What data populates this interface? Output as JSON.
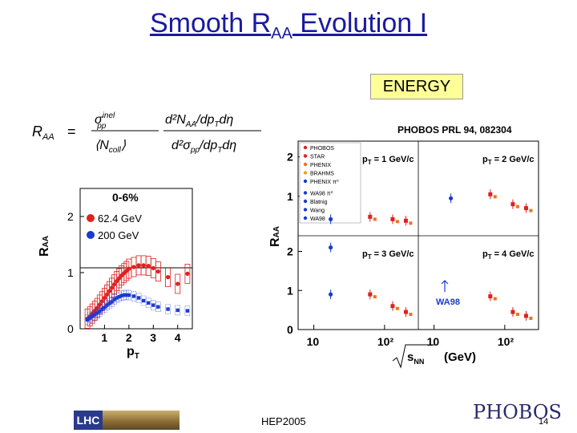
{
  "slide": {
    "title_main": "Smooth R",
    "title_sub": "AA",
    "title_rest": " Evolution I",
    "energy_label": "ENERGY",
    "reference": "PHOBOS PRL 94, 082304",
    "footer_center": "HEP2005",
    "page_number": "14",
    "logo_left_text": "LHC",
    "logo_right_text": "PHOBOS"
  },
  "formula": {
    "lhs": "R",
    "lhs_sub": "AA",
    "eq": "=",
    "frac1_num": "σ",
    "frac1_num_sup": "inel",
    "frac1_num_sub": "pp",
    "frac1_den": "⟨N",
    "frac1_den_sub": "coll",
    "frac1_den_end": "⟩",
    "frac2_num": "d²N",
    "frac2_num_sub": "AA",
    "frac2_num_end": "/dp",
    "frac2_num_sub2": "T",
    "frac2_num_tail": "dη",
    "frac2_den": "d²σ",
    "frac2_den_sub": "pp",
    "frac2_den_end": "/dp",
    "frac2_den_sub2": "T",
    "frac2_den_tail": "dη"
  },
  "colors": {
    "title": "#1a1aa0",
    "red": "#e02020",
    "blue": "#1a3ad0",
    "orange": "#f07020",
    "highlight": "#ffff99"
  },
  "chart_data": [
    {
      "type": "scatter",
      "title": "0-6%",
      "ylabel": "R",
      "ylabel_sub": "AA",
      "xlabel": "p",
      "xlabel_sub": "T",
      "xlim": [
        0,
        4.6
      ],
      "ylim": [
        0,
        2.5
      ],
      "x_ticks": [
        "1",
        "2",
        "3",
        "4"
      ],
      "y_ticks": [
        "0",
        "1",
        "2"
      ],
      "legend": [
        "62.4 GeV",
        "200 GeV"
      ],
      "series": [
        {
          "name": "62.4 GeV",
          "color": "#e02020",
          "x": [
            0.3,
            0.4,
            0.5,
            0.6,
            0.7,
            0.8,
            0.9,
            1.0,
            1.1,
            1.2,
            1.3,
            1.4,
            1.5,
            1.6,
            1.7,
            1.8,
            1.9,
            2.0,
            2.2,
            2.4,
            2.6,
            2.8,
            3.0,
            3.2,
            3.6,
            4.0,
            4.4
          ],
          "y": [
            0.18,
            0.22,
            0.27,
            0.32,
            0.37,
            0.43,
            0.49,
            0.55,
            0.61,
            0.67,
            0.73,
            0.79,
            0.85,
            0.9,
            0.95,
            0.99,
            1.03,
            1.07,
            1.1,
            1.13,
            1.13,
            1.12,
            1.08,
            1.02,
            0.92,
            0.8,
            0.98
          ]
        },
        {
          "name": "200 GeV",
          "color": "#1a3ad0",
          "x": [
            0.3,
            0.4,
            0.5,
            0.6,
            0.7,
            0.8,
            0.9,
            1.0,
            1.1,
            1.2,
            1.3,
            1.4,
            1.5,
            1.6,
            1.7,
            1.8,
            1.9,
            2.0,
            2.2,
            2.4,
            2.6,
            2.8,
            3.0,
            3.2,
            3.6,
            4.0,
            4.4
          ],
          "y": [
            0.16,
            0.19,
            0.22,
            0.25,
            0.28,
            0.31,
            0.35,
            0.38,
            0.42,
            0.45,
            0.48,
            0.52,
            0.55,
            0.57,
            0.59,
            0.6,
            0.6,
            0.6,
            0.58,
            0.55,
            0.5,
            0.46,
            0.42,
            0.39,
            0.35,
            0.33,
            0.32
          ]
        }
      ]
    },
    {
      "type": "scatter",
      "ylabel": "R",
      "ylabel_sub": "AA",
      "xlabel": "s",
      "xlabel_sub": "NN",
      "xlabel_unit": "(GeV)",
      "x_scale": "log",
      "xlim": [
        6,
        300
      ],
      "x_ticks": [
        "10",
        "10²",
        "10",
        "10²"
      ],
      "y_ticks_top": [
        "1",
        "2"
      ],
      "y_ticks_bottom": [
        "0",
        "1",
        "2"
      ],
      "legend": [
        "PHOBOS",
        "STAR",
        "PHENIX",
        "BRAHMS",
        "PHENIX π⁰",
        "WA98 π⁰",
        "Blatnig",
        "Wang",
        "WA98"
      ],
      "annotation": "WA98",
      "panels": [
        {
          "label": "p",
          "label_sub": "T",
          "label_value": " = 1 GeV/c",
          "ylim": [
            0,
            2.4
          ],
          "series": [
            {
              "name": "PHOBOS",
              "color": "#e02020",
              "x": [
                62.4,
                130,
                200
              ],
              "y": [
                0.48,
                0.42,
                0.38
              ]
            },
            {
              "name": "Blatnig",
              "color": "#1a3ad0",
              "x": [
                17.3
              ],
              "y": [
                0.42
              ]
            }
          ]
        },
        {
          "label": "p",
          "label_sub": "T",
          "label_value": " = 2 GeV/c",
          "ylim": [
            0,
            2.4
          ],
          "series": [
            {
              "name": "PHOBOS",
              "color": "#e02020",
              "x": [
                62.4,
                130,
                200
              ],
              "y": [
                1.05,
                0.8,
                0.7
              ]
            },
            {
              "name": "Blatnig",
              "color": "#1a3ad0",
              "x": [
                17.3
              ],
              "y": [
                0.95
              ]
            }
          ]
        },
        {
          "label": "p",
          "label_sub": "T",
          "label_value": " = 3 GeV/c",
          "ylim": [
            0,
            2.4
          ],
          "series": [
            {
              "name": "PHOBOS",
              "color": "#e02020",
              "x": [
                62.4,
                130,
                200
              ],
              "y": [
                0.9,
                0.6,
                0.45
              ]
            },
            {
              "name": "Blatnig",
              "color": "#1a3ad0",
              "x": [
                17.3
              ],
              "y": [
                0.9
              ]
            },
            {
              "name": "WA98",
              "color": "#1a3ad0",
              "x": [
                17.3
              ],
              "y": [
                2.1
              ]
            }
          ]
        },
        {
          "label": "p",
          "label_sub": "T",
          "label_value": " = 4 GeV/c",
          "ylim": [
            0,
            2.4
          ],
          "series": [
            {
              "name": "PHOBOS",
              "color": "#e02020",
              "x": [
                62.4,
                130,
                200
              ],
              "y": [
                0.85,
                0.45,
                0.35
              ]
            }
          ]
        }
      ]
    }
  ]
}
